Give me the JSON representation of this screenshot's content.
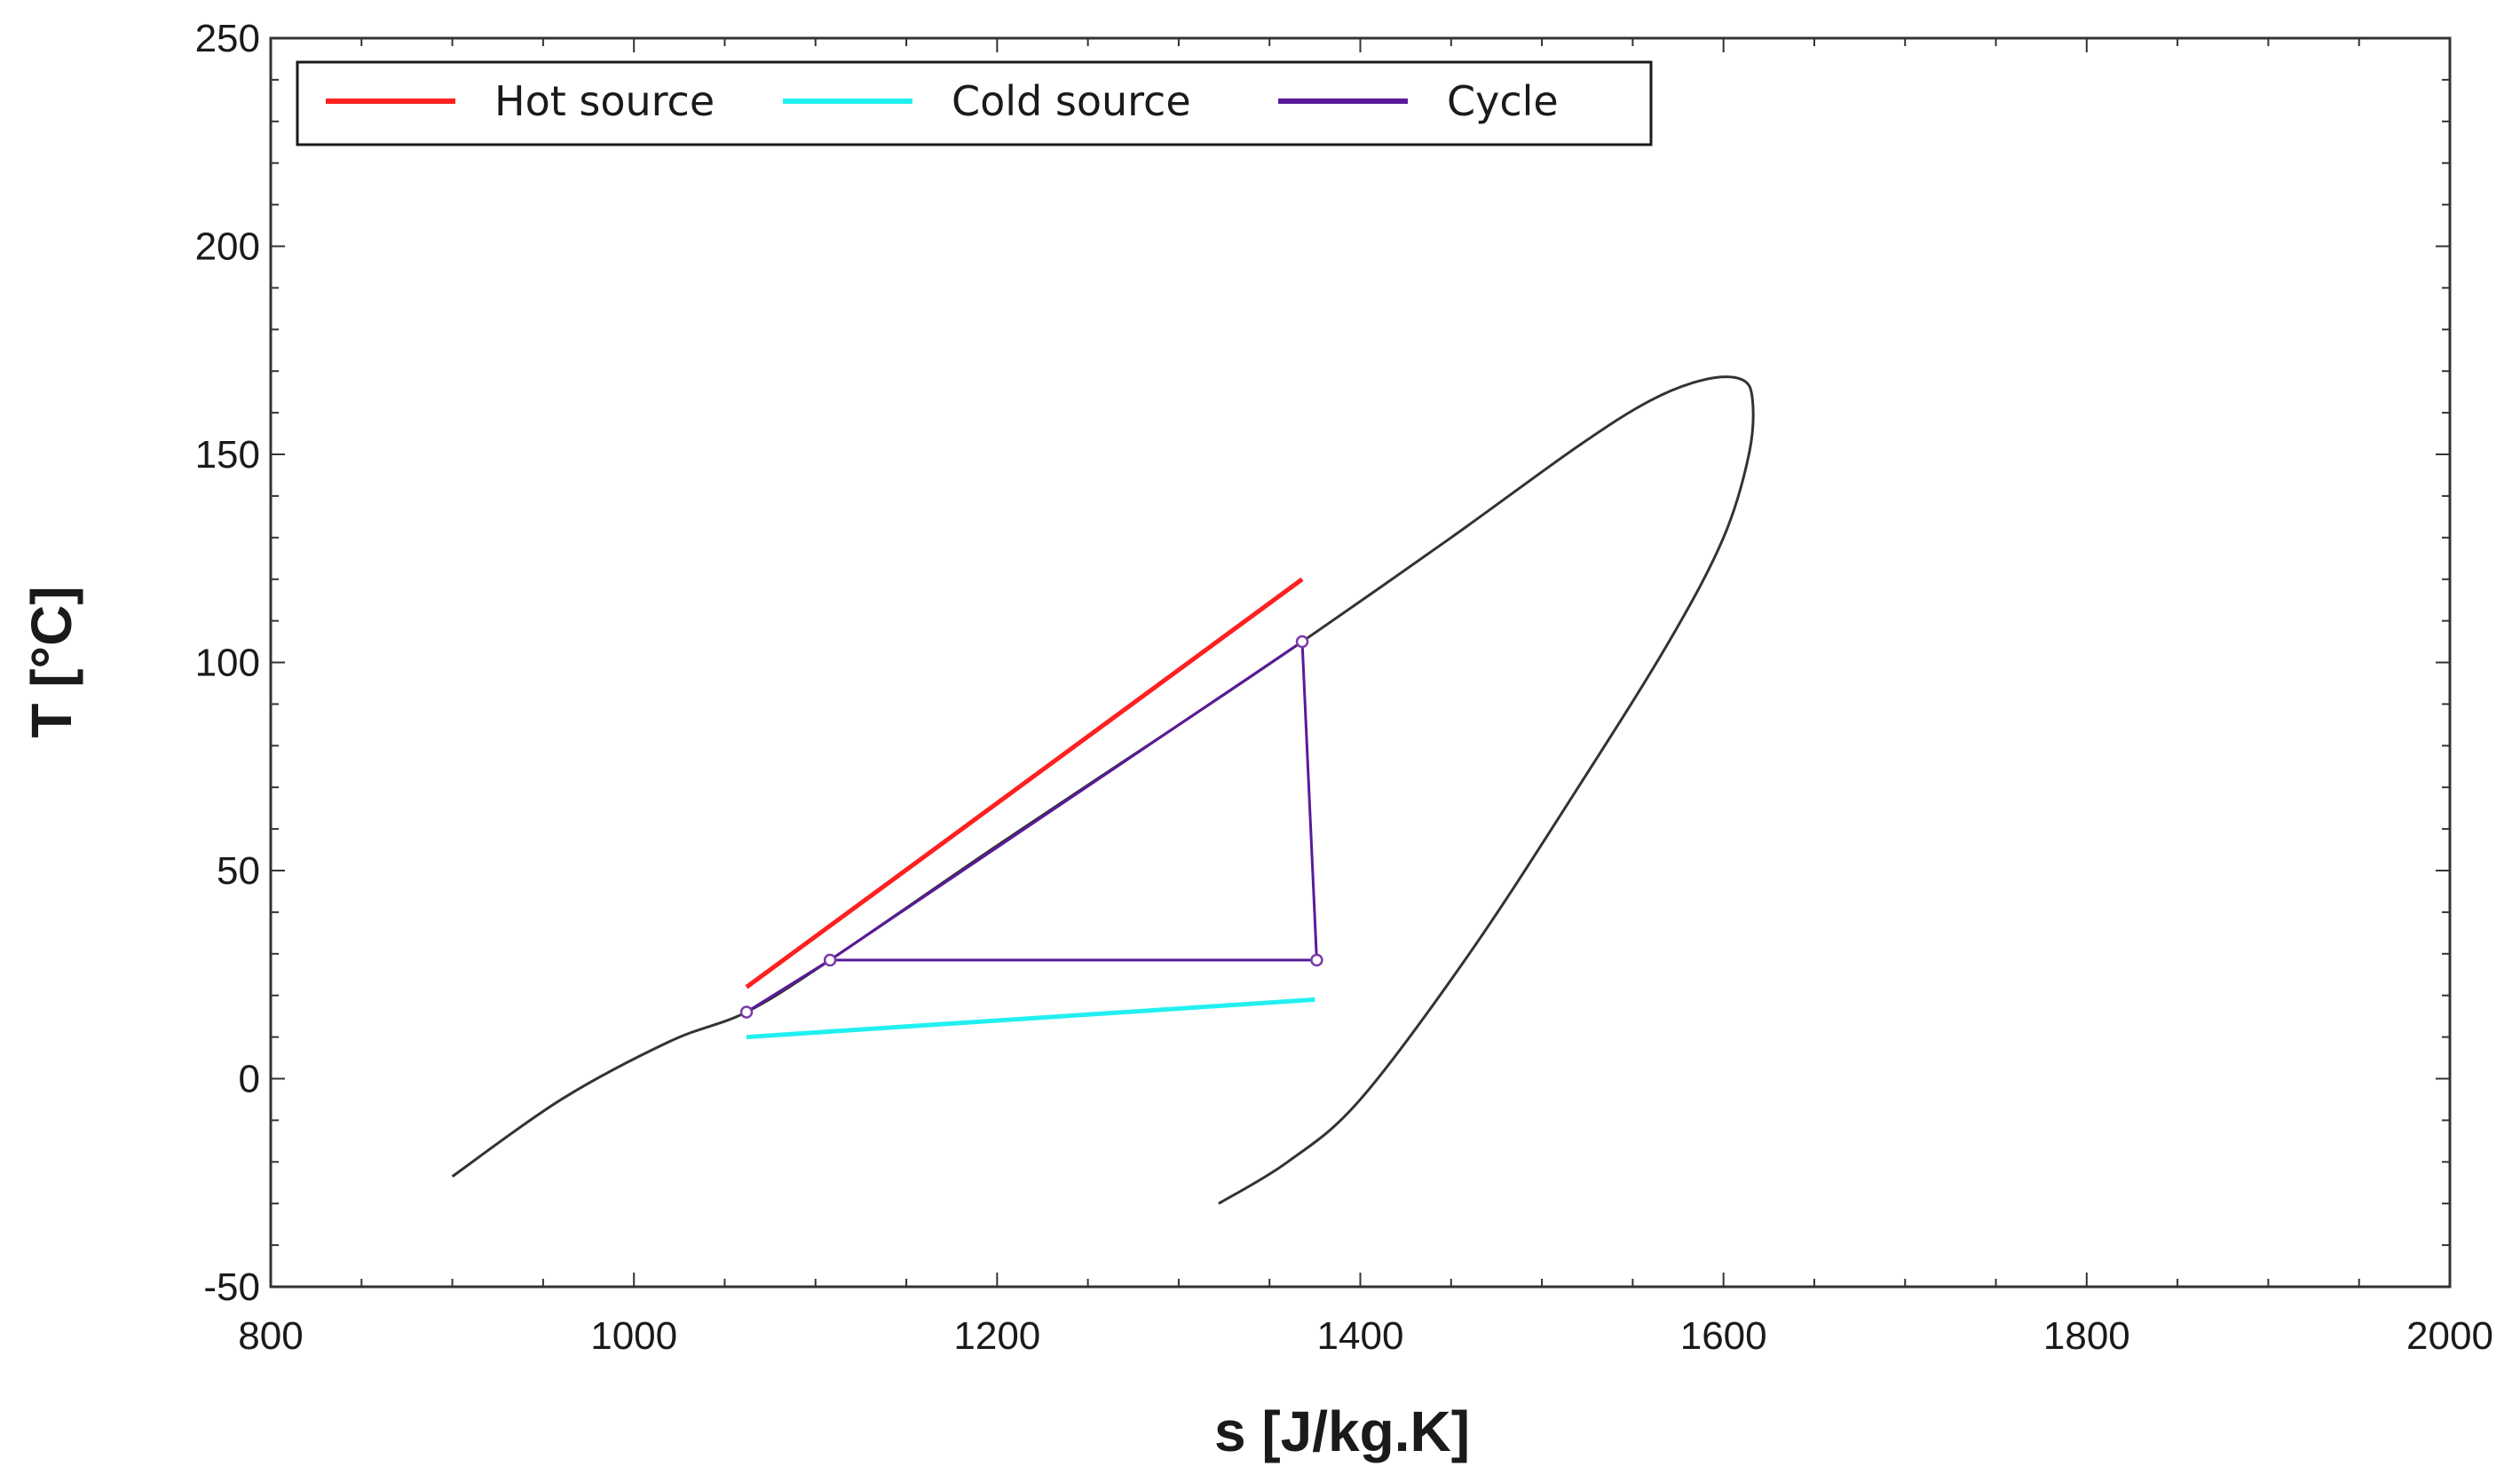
{
  "chart_data": {
    "type": "line",
    "title": "",
    "xlabel": "s [J/kg.K]",
    "ylabel": "T [°C]",
    "xlim": [
      800,
      2000
    ],
    "ylim": [
      -50,
      250
    ],
    "xticks": [
      800,
      1000,
      1200,
      1400,
      1600,
      1800,
      2000
    ],
    "yticks": [
      -50,
      0,
      50,
      100,
      150,
      200,
      250
    ],
    "grid": false,
    "legend_position": "top-left",
    "series": [
      {
        "name": "Hot source",
        "color": "#ff2020",
        "x": [
          1062,
          1368
        ],
        "y": [
          22,
          120
        ]
      },
      {
        "name": "Cold source",
        "color": "#22f0f0",
        "x": [
          1062,
          1375
        ],
        "y": [
          10,
          19
        ]
      },
      {
        "name": "Cycle",
        "color": "#5a1a9a",
        "x": [
          1062,
          1108,
          1368,
          1376,
          1108,
          1062
        ],
        "y": [
          16,
          28.5,
          105,
          28.5,
          28.5,
          16
        ]
      }
    ],
    "saturation_dome": {
      "color": "#333333",
      "x": [
        900,
        960,
        1020,
        1062,
        1108,
        1200,
        1300,
        1368,
        1450,
        1520,
        1560,
        1590,
        1610,
        1616,
        1614,
        1600,
        1570,
        1520,
        1460,
        1400,
        1360,
        1322
      ],
      "y": [
        -23.5,
        -5,
        9,
        16,
        28.5,
        56,
        85,
        105,
        130,
        152,
        163,
        168,
        168,
        163,
        150,
        130,
        105,
        70,
        30,
        -5,
        -20,
        -30
      ]
    },
    "cycle_markers": {
      "x": [
        1062,
        1108,
        1368,
        1376
      ],
      "y": [
        16,
        28.5,
        105,
        28.5
      ]
    }
  }
}
